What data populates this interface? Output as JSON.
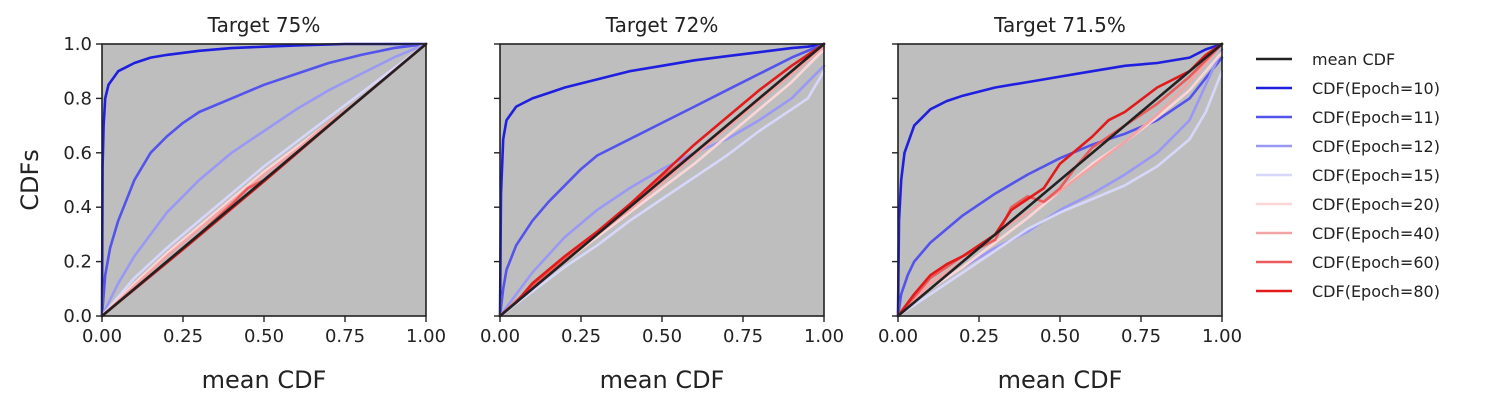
{
  "chart_data": [
    {
      "type": "line",
      "title": "Target 75%",
      "xlabel": "mean CDF",
      "ylabel": "CDFs",
      "xlim": [
        0,
        1
      ],
      "ylim": [
        0,
        1
      ],
      "xticks": [
        "0.00",
        "0.25",
        "0.50",
        "0.75",
        "1.00"
      ],
      "yticks": [
        "0.0",
        "0.2",
        "0.4",
        "0.6",
        "0.8",
        "1.0"
      ],
      "series": [
        {
          "name": "mean CDF",
          "x": [
            0,
            1
          ],
          "y": [
            0,
            1
          ]
        },
        {
          "name": "CDF(Epoch=10)",
          "x": [
            0,
            0.002,
            0.005,
            0.01,
            0.02,
            0.05,
            0.1,
            0.15,
            0.2,
            0.3,
            0.4,
            0.5,
            0.6,
            0.75,
            0.9,
            1.0
          ],
          "y": [
            0,
            0.55,
            0.7,
            0.8,
            0.85,
            0.9,
            0.93,
            0.95,
            0.96,
            0.975,
            0.985,
            0.99,
            0.995,
            1.0,
            1.0,
            1.0
          ]
        },
        {
          "name": "CDF(Epoch=11)",
          "x": [
            0,
            0.01,
            0.025,
            0.05,
            0.1,
            0.15,
            0.2,
            0.25,
            0.3,
            0.4,
            0.5,
            0.6,
            0.7,
            0.8,
            0.9,
            1.0
          ],
          "y": [
            0,
            0.15,
            0.25,
            0.35,
            0.5,
            0.6,
            0.66,
            0.71,
            0.75,
            0.8,
            0.85,
            0.89,
            0.93,
            0.96,
            0.985,
            1.0
          ]
        },
        {
          "name": "CDF(Epoch=12)",
          "x": [
            0,
            0.05,
            0.1,
            0.15,
            0.2,
            0.25,
            0.3,
            0.4,
            0.5,
            0.6,
            0.7,
            0.8,
            0.9,
            1.0
          ],
          "y": [
            0,
            0.12,
            0.22,
            0.3,
            0.38,
            0.44,
            0.5,
            0.6,
            0.68,
            0.76,
            0.83,
            0.89,
            0.95,
            1.0
          ]
        },
        {
          "name": "CDF(Epoch=15)",
          "x": [
            0,
            0.1,
            0.2,
            0.3,
            0.4,
            0.5,
            0.6,
            0.7,
            0.8,
            0.9,
            1.0
          ],
          "y": [
            0,
            0.14,
            0.25,
            0.35,
            0.45,
            0.55,
            0.64,
            0.73,
            0.82,
            0.91,
            1.0
          ]
        },
        {
          "name": "CDF(Epoch=20)",
          "x": [
            0,
            0.1,
            0.2,
            0.3,
            0.4,
            0.5,
            0.6,
            0.7,
            0.8,
            0.9,
            1.0
          ],
          "y": [
            0,
            0.12,
            0.23,
            0.33,
            0.43,
            0.53,
            0.62,
            0.71,
            0.8,
            0.9,
            1.0
          ]
        },
        {
          "name": "CDF(Epoch=40)",
          "x": [
            0,
            0.1,
            0.2,
            0.3,
            0.4,
            0.5,
            0.6,
            0.7,
            0.8,
            0.9,
            1.0
          ],
          "y": [
            0,
            0.11,
            0.22,
            0.32,
            0.42,
            0.52,
            0.61,
            0.71,
            0.8,
            0.9,
            1.0
          ]
        },
        {
          "name": "CDF(Epoch=60)",
          "x": [
            0,
            0.1,
            0.2,
            0.3,
            0.4,
            0.45,
            0.5,
            0.55,
            0.6,
            0.7,
            0.8,
            0.9,
            1.0
          ],
          "y": [
            0,
            0.1,
            0.2,
            0.3,
            0.41,
            0.47,
            0.5,
            0.55,
            0.6,
            0.7,
            0.8,
            0.9,
            1.0
          ]
        },
        {
          "name": "CDF(Epoch=80)",
          "x": [
            0,
            0.25,
            0.5,
            0.75,
            1.0
          ],
          "y": [
            0,
            0.245,
            0.495,
            0.75,
            1.0
          ]
        }
      ]
    },
    {
      "type": "line",
      "title": "Target 72%",
      "xlabel": "mean CDF",
      "ylabel": "",
      "xlim": [
        0,
        1
      ],
      "ylim": [
        0,
        1
      ],
      "xticks": [
        "0.00",
        "0.25",
        "0.50",
        "0.75",
        "1.00"
      ],
      "yticks": [],
      "series": [
        {
          "name": "mean CDF",
          "x": [
            0,
            1
          ],
          "y": [
            0,
            1
          ]
        },
        {
          "name": "CDF(Epoch=10)",
          "x": [
            0,
            0.003,
            0.01,
            0.02,
            0.05,
            0.1,
            0.15,
            0.2,
            0.3,
            0.4,
            0.5,
            0.6,
            0.7,
            0.8,
            0.9,
            0.95,
            1.0
          ],
          "y": [
            0,
            0.45,
            0.65,
            0.72,
            0.77,
            0.8,
            0.82,
            0.84,
            0.87,
            0.9,
            0.92,
            0.94,
            0.955,
            0.97,
            0.985,
            0.99,
            1.0
          ]
        },
        {
          "name": "CDF(Epoch=11)",
          "x": [
            0,
            0.01,
            0.02,
            0.05,
            0.1,
            0.15,
            0.2,
            0.25,
            0.3,
            0.4,
            0.5,
            0.6,
            0.7,
            0.8,
            0.9,
            1.0
          ],
          "y": [
            0,
            0.1,
            0.17,
            0.26,
            0.35,
            0.42,
            0.48,
            0.54,
            0.59,
            0.65,
            0.71,
            0.77,
            0.83,
            0.89,
            0.95,
            1.0
          ]
        },
        {
          "name": "CDF(Epoch=12)",
          "x": [
            0,
            0.1,
            0.2,
            0.3,
            0.4,
            0.5,
            0.6,
            0.7,
            0.8,
            0.9,
            0.95,
            1.0
          ],
          "y": [
            0,
            0.16,
            0.29,
            0.39,
            0.47,
            0.54,
            0.6,
            0.65,
            0.72,
            0.8,
            0.86,
            0.92
          ]
        },
        {
          "name": "CDF(Epoch=15)",
          "x": [
            0,
            0.1,
            0.2,
            0.3,
            0.4,
            0.5,
            0.6,
            0.7,
            0.8,
            0.9,
            0.95,
            1.0
          ],
          "y": [
            0,
            0.09,
            0.18,
            0.26,
            0.35,
            0.43,
            0.51,
            0.59,
            0.68,
            0.76,
            0.8,
            0.9
          ]
        },
        {
          "name": "CDF(Epoch=20)",
          "x": [
            0,
            0.1,
            0.2,
            0.3,
            0.4,
            0.5,
            0.6,
            0.7,
            0.8,
            0.9,
            1.0
          ],
          "y": [
            0,
            0.1,
            0.2,
            0.29,
            0.38,
            0.47,
            0.56,
            0.66,
            0.76,
            0.86,
            0.98
          ]
        },
        {
          "name": "CDF(Epoch=40)",
          "x": [
            0,
            0.1,
            0.2,
            0.3,
            0.4,
            0.5,
            0.6,
            0.7,
            0.8,
            0.9,
            1.0
          ],
          "y": [
            0,
            0.1,
            0.2,
            0.3,
            0.39,
            0.49,
            0.59,
            0.69,
            0.79,
            0.89,
            0.99
          ]
        },
        {
          "name": "CDF(Epoch=60)",
          "x": [
            0,
            0.1,
            0.2,
            0.3,
            0.4,
            0.5,
            0.6,
            0.7,
            0.8,
            0.9,
            1.0
          ],
          "y": [
            0,
            0.11,
            0.21,
            0.31,
            0.41,
            0.51,
            0.6,
            0.7,
            0.8,
            0.9,
            1.0
          ]
        },
        {
          "name": "CDF(Epoch=80)",
          "x": [
            0,
            0.05,
            0.1,
            0.15,
            0.2,
            0.3,
            0.4,
            0.5,
            0.6,
            0.7,
            0.8,
            0.9,
            1.0
          ],
          "y": [
            0,
            0.05,
            0.12,
            0.17,
            0.22,
            0.31,
            0.41,
            0.52,
            0.63,
            0.73,
            0.83,
            0.92,
            1.0
          ]
        }
      ]
    },
    {
      "type": "line",
      "title": "Target 71.5%",
      "xlabel": "mean CDF",
      "ylabel": "",
      "xlim": [
        0,
        1
      ],
      "ylim": [
        0,
        1
      ],
      "xticks": [
        "0.00",
        "0.25",
        "0.50",
        "0.75",
        "1.00"
      ],
      "yticks": [],
      "series": [
        {
          "name": "mean CDF",
          "x": [
            0,
            1
          ],
          "y": [
            0,
            1
          ]
        },
        {
          "name": "CDF(Epoch=10)",
          "x": [
            0,
            0.003,
            0.01,
            0.02,
            0.05,
            0.1,
            0.15,
            0.2,
            0.3,
            0.4,
            0.5,
            0.6,
            0.7,
            0.8,
            0.9,
            0.95,
            1.0
          ],
          "y": [
            0,
            0.35,
            0.5,
            0.6,
            0.7,
            0.76,
            0.79,
            0.81,
            0.84,
            0.86,
            0.88,
            0.9,
            0.92,
            0.93,
            0.95,
            0.98,
            1.0
          ]
        },
        {
          "name": "CDF(Epoch=11)",
          "x": [
            0,
            0.01,
            0.03,
            0.05,
            0.1,
            0.2,
            0.3,
            0.4,
            0.5,
            0.6,
            0.7,
            0.8,
            0.9,
            1.0
          ],
          "y": [
            0,
            0.08,
            0.15,
            0.2,
            0.27,
            0.37,
            0.45,
            0.52,
            0.58,
            0.63,
            0.67,
            0.72,
            0.8,
            0.95
          ]
        },
        {
          "name": "CDF(Epoch=12)",
          "x": [
            0,
            0.1,
            0.2,
            0.3,
            0.4,
            0.5,
            0.6,
            0.7,
            0.8,
            0.9,
            0.95,
            1.0
          ],
          "y": [
            0,
            0.1,
            0.18,
            0.25,
            0.31,
            0.39,
            0.45,
            0.52,
            0.6,
            0.72,
            0.85,
            0.98
          ]
        },
        {
          "name": "CDF(Epoch=15)",
          "x": [
            0,
            0.1,
            0.2,
            0.3,
            0.4,
            0.5,
            0.6,
            0.7,
            0.8,
            0.9,
            0.95,
            1.0
          ],
          "y": [
            0,
            0.08,
            0.16,
            0.24,
            0.32,
            0.38,
            0.43,
            0.48,
            0.55,
            0.65,
            0.75,
            0.9
          ]
        },
        {
          "name": "CDF(Epoch=20)",
          "x": [
            0,
            0.1,
            0.2,
            0.3,
            0.4,
            0.5,
            0.6,
            0.7,
            0.8,
            0.9,
            1.0
          ],
          "y": [
            0,
            0.1,
            0.18,
            0.27,
            0.36,
            0.46,
            0.56,
            0.64,
            0.73,
            0.83,
            0.97
          ]
        },
        {
          "name": "CDF(Epoch=40)",
          "x": [
            0,
            0.1,
            0.2,
            0.3,
            0.4,
            0.5,
            0.6,
            0.7,
            0.8,
            0.9,
            1.0
          ],
          "y": [
            0,
            0.12,
            0.2,
            0.3,
            0.38,
            0.46,
            0.55,
            0.64,
            0.74,
            0.86,
            1.0
          ]
        },
        {
          "name": "CDF(Epoch=60)",
          "x": [
            0,
            0.1,
            0.2,
            0.3,
            0.35,
            0.4,
            0.45,
            0.5,
            0.55,
            0.6,
            0.7,
            0.8,
            0.9,
            1.0
          ],
          "y": [
            0,
            0.14,
            0.22,
            0.28,
            0.4,
            0.44,
            0.42,
            0.47,
            0.55,
            0.62,
            0.7,
            0.78,
            0.88,
            1.0
          ]
        },
        {
          "name": "CDF(Epoch=80)",
          "x": [
            0,
            0.05,
            0.1,
            0.15,
            0.2,
            0.3,
            0.35,
            0.4,
            0.45,
            0.5,
            0.55,
            0.6,
            0.65,
            0.7,
            0.8,
            0.9,
            0.95,
            1.0
          ],
          "y": [
            0,
            0.08,
            0.15,
            0.19,
            0.22,
            0.3,
            0.39,
            0.43,
            0.47,
            0.56,
            0.61,
            0.66,
            0.72,
            0.75,
            0.84,
            0.9,
            0.96,
            1.0
          ]
        }
      ]
    }
  ],
  "legend": {
    "placement": "right",
    "entries": [
      {
        "label": "mean CDF",
        "color": "#222222"
      },
      {
        "label": "CDF(Epoch=10)",
        "color": "#1f1fe0"
      },
      {
        "label": "CDF(Epoch=11)",
        "color": "#5353ee"
      },
      {
        "label": "CDF(Epoch=12)",
        "color": "#9999f5"
      },
      {
        "label": "CDF(Epoch=15)",
        "color": "#d7d7fb"
      },
      {
        "label": "CDF(Epoch=20)",
        "color": "#fbd6d6"
      },
      {
        "label": "CDF(Epoch=40)",
        "color": "#f3a3a3"
      },
      {
        "label": "CDF(Epoch=60)",
        "color": "#ec5a5a"
      },
      {
        "label": "CDF(Epoch=80)",
        "color": "#e31a1a"
      }
    ]
  },
  "colors": {
    "panel_background": "#bebebe",
    "axis": "#222222"
  }
}
